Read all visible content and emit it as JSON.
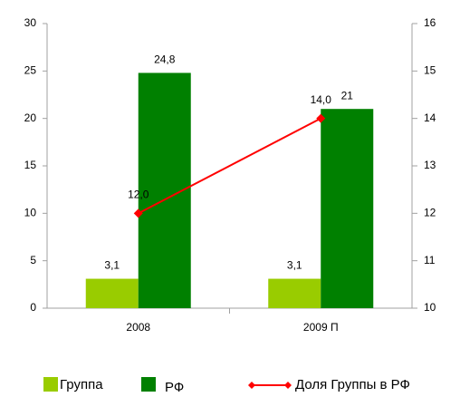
{
  "chart_data": {
    "type": "bar",
    "categories": [
      "2008",
      "2009 П"
    ],
    "series": [
      {
        "name": "Группа",
        "color": "#99cc00",
        "values": [
          3.1,
          3.1
        ],
        "value_labels": [
          "3,1",
          "3,1"
        ]
      },
      {
        "name": "РФ",
        "color": "#008000",
        "values": [
          24.8,
          21
        ],
        "value_labels": [
          "24,8",
          "21"
        ]
      },
      {
        "name": "Доля Группы в РФ",
        "type": "line",
        "axis": "y2",
        "color": "#ff0000",
        "values": [
          12.0,
          14.0
        ],
        "value_labels": [
          "12,0",
          "14,0"
        ]
      }
    ],
    "ylim": [
      0,
      30
    ],
    "yticks": [
      0,
      5,
      10,
      15,
      20,
      25,
      30
    ],
    "y2lim": [
      10,
      16
    ],
    "y2ticks": [
      10,
      11,
      12,
      13,
      14,
      15,
      16
    ],
    "legend": "bottom"
  }
}
